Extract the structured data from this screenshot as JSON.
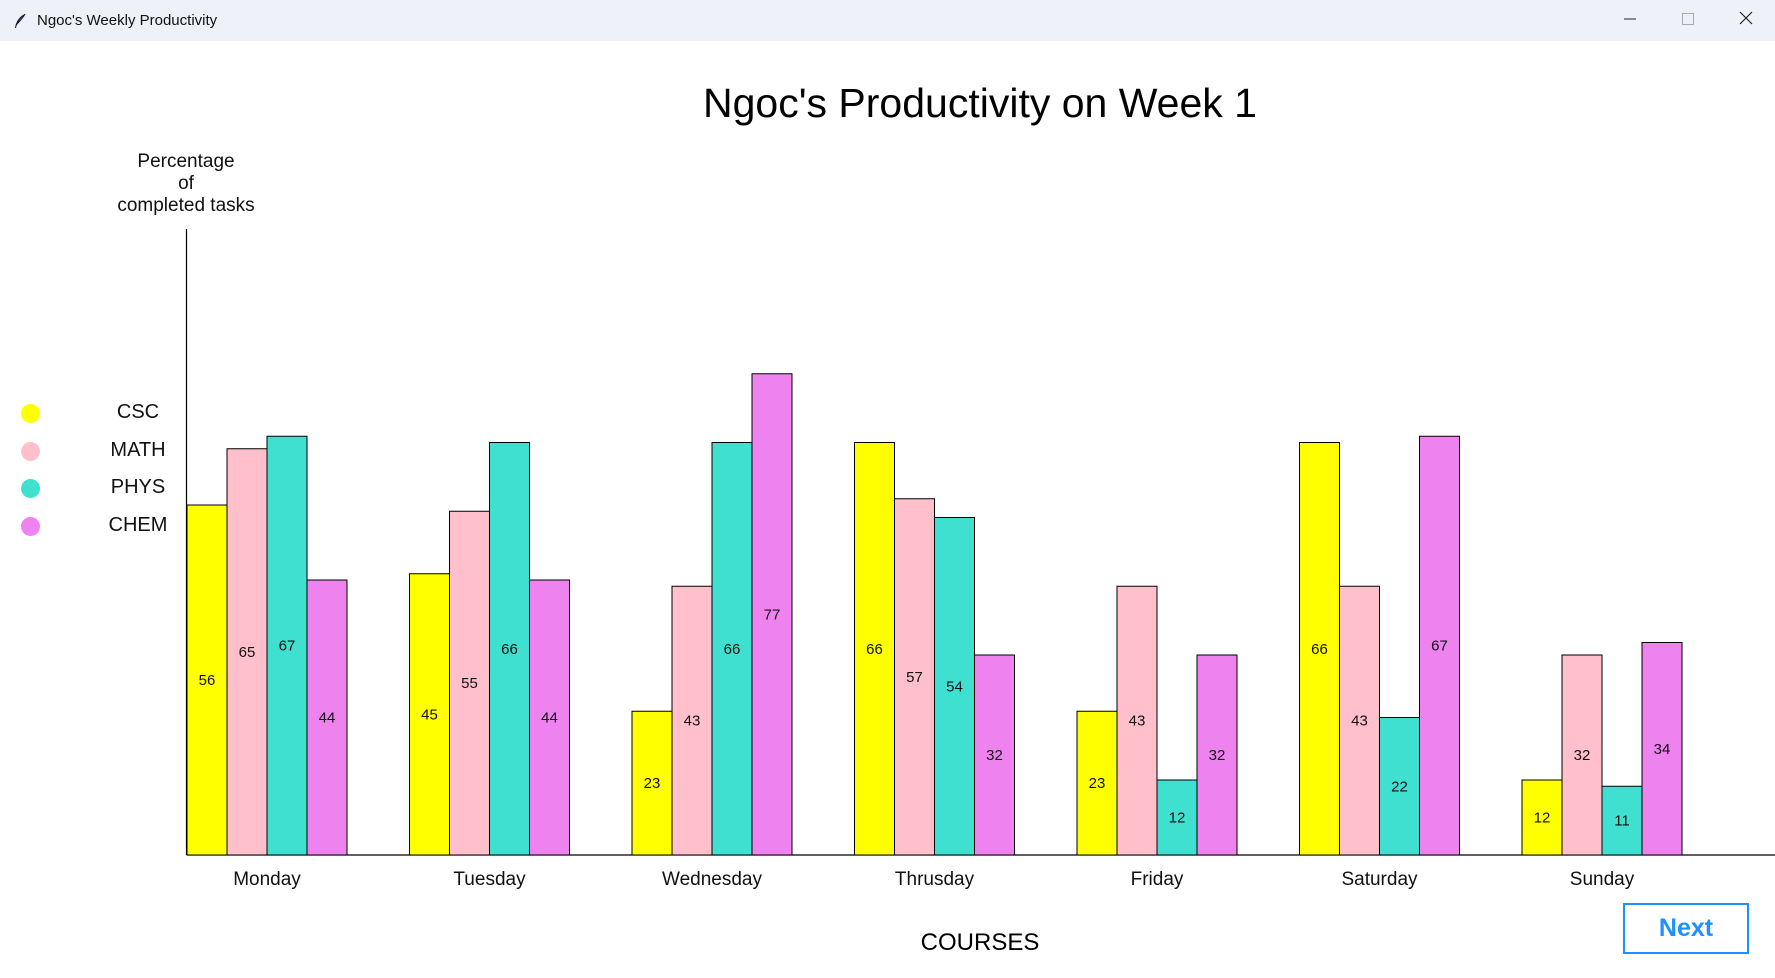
{
  "window": {
    "title": "Ngoc's Weekly Productivity"
  },
  "icons": {
    "app": "feather-icon",
    "minimize": "minimize-icon",
    "maximize": "maximize-icon",
    "close": "close-icon"
  },
  "buttons": {
    "next_label": "Next"
  },
  "colors": {
    "CSC": "#ffff00",
    "MATH": "#ffc0cb",
    "PHYS": "#40e0d0",
    "CHEM": "#ee82ee",
    "accent": "#1e90ff"
  },
  "chart_data": {
    "type": "bar",
    "title": "Ngoc's Productivity on Week 1",
    "xlabel": "COURSES",
    "ylabel": "Percentage\nof\ncompleted tasks",
    "categories": [
      "Monday",
      "Tuesday",
      "Wednesday",
      "Thrusday",
      "Friday",
      "Saturday",
      "Sunday"
    ],
    "series": [
      {
        "name": "CSC",
        "values": [
          56,
          45,
          23,
          66,
          23,
          66,
          12
        ]
      },
      {
        "name": "MATH",
        "values": [
          65,
          55,
          43,
          57,
          43,
          43,
          32
        ]
      },
      {
        "name": "PHYS",
        "values": [
          67,
          66,
          66,
          54,
          12,
          22,
          11
        ]
      },
      {
        "name": "CHEM",
        "values": [
          44,
          44,
          77,
          32,
          32,
          67,
          34
        ]
      }
    ],
    "legend_position": "left",
    "grid": false
  }
}
